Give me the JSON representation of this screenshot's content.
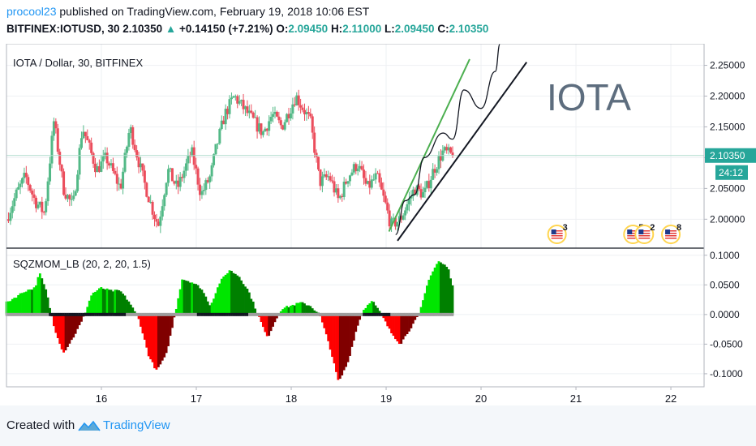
{
  "header": {
    "user": "procool23",
    "published_text": "published on TradingView.com, February 19, 2018 10:06 EST",
    "symbol": "BITFINEX:IOTUSD, 30",
    "last": "2.10350",
    "change_arrow": "▲",
    "change": "+0.14150 (+7.21%)",
    "o_label": "O:",
    "o_value": "2.09450",
    "h_label": "H:",
    "h_value": "2.11000",
    "l_label": "L:",
    "l_value": "2.09450",
    "c_label": "C:",
    "c_value": "2.10350"
  },
  "footer": {
    "created": "Created with",
    "brand": "TradingView"
  },
  "colors": {
    "up_candle": "#53b987",
    "down_candle": "#eb4d5c",
    "hist_green": "#00e600",
    "hist_green_dark": "#008000",
    "hist_red": "#ff0000",
    "hist_red_dark": "#800000",
    "price_line": "#b0dccd",
    "price_label_bg": "#26a69a",
    "annotation_green": "#4caf50",
    "annotation_black": "#131722",
    "iota_text": "#5d6d7e",
    "flag_ring": "#ffd54f"
  },
  "chart_data": [
    {
      "type": "candlestick",
      "title": "IOTA / Dollar, 30, BITFINEX",
      "x_tick_labels": [
        "16",
        "17",
        "18",
        "19",
        "20",
        "21",
        "22"
      ],
      "x_ticks": [
        16,
        17,
        18,
        19,
        20,
        21,
        22
      ],
      "xlim": [
        15.0,
        22.35
      ],
      "ylim": [
        1.953,
        2.285
      ],
      "y_ticks": [
        2.0,
        2.05,
        2.1,
        2.15,
        2.2,
        2.25
      ],
      "y_tick_labels": [
        "2.00000",
        "2.05000",
        "2.10000",
        "2.15000",
        "2.20000",
        "2.25000"
      ],
      "last_price": "2.10350",
      "last_price_value": 2.1035,
      "countdown": "24:12",
      "grid": true,
      "closes_anchor": [
        [
          15.0,
          2.0
        ],
        [
          15.1,
          2.04
        ],
        [
          15.2,
          2.07
        ],
        [
          15.3,
          2.03
        ],
        [
          15.4,
          2.01
        ],
        [
          15.5,
          2.16
        ],
        [
          15.6,
          2.05
        ],
        [
          15.7,
          2.02
        ],
        [
          15.8,
          2.15
        ],
        [
          15.95,
          2.08
        ],
        [
          16.05,
          2.1
        ],
        [
          16.2,
          2.05
        ],
        [
          16.3,
          2.15
        ],
        [
          16.45,
          2.06
        ],
        [
          16.55,
          2.01
        ],
        [
          16.6,
          1.99
        ],
        [
          16.7,
          2.08
        ],
        [
          16.8,
          2.05
        ],
        [
          16.95,
          2.11
        ],
        [
          17.05,
          2.04
        ],
        [
          17.15,
          2.07
        ],
        [
          17.2,
          2.11
        ],
        [
          17.3,
          2.17
        ],
        [
          17.4,
          2.2
        ],
        [
          17.55,
          2.17
        ],
        [
          17.7,
          2.14
        ],
        [
          17.8,
          2.17
        ],
        [
          17.9,
          2.15
        ],
        [
          18.05,
          2.2
        ],
        [
          18.2,
          2.16
        ],
        [
          18.3,
          2.06
        ],
        [
          18.4,
          2.07
        ],
        [
          18.5,
          2.03
        ],
        [
          18.6,
          2.07
        ],
        [
          18.7,
          2.09
        ],
        [
          18.8,
          2.05
        ],
        [
          18.9,
          2.07
        ],
        [
          19.0,
          2.02
        ],
        [
          19.05,
          1.99
        ],
        [
          19.15,
          2.0
        ],
        [
          19.3,
          2.05
        ],
        [
          19.4,
          2.04
        ],
        [
          19.5,
          2.08
        ],
        [
          19.6,
          2.11
        ],
        [
          19.7,
          2.1035
        ]
      ],
      "annotations": [
        {
          "type": "text",
          "text": "IOTA"
        },
        {
          "type": "trendline",
          "color": "green",
          "from": [
            19.03,
            1.98
          ],
          "to": [
            19.88,
            2.26
          ]
        },
        {
          "type": "trendline",
          "color": "black",
          "from": [
            19.12,
            1.965
          ],
          "to": [
            20.48,
            2.255
          ]
        },
        {
          "type": "path",
          "color": "black",
          "points": [
            [
              19.1,
              1.975
            ],
            [
              19.2,
              2.03
            ],
            [
              19.3,
              2.04
            ],
            [
              19.4,
              2.1
            ],
            [
              19.6,
              2.14
            ],
            [
              19.7,
              2.13
            ],
            [
              19.82,
              2.21
            ],
            [
              20.0,
              2.18
            ],
            [
              20.15,
              2.24
            ],
            [
              20.2,
              2.3
            ]
          ]
        }
      ],
      "event_flags": [
        {
          "x": 20.8,
          "label": "3"
        },
        {
          "x": 21.6,
          "label": "5"
        },
        {
          "x": 21.72,
          "label": "2"
        },
        {
          "x": 22.0,
          "label": "8"
        }
      ]
    },
    {
      "type": "bar",
      "title": "SQZMOM_LB (20, 2, 20, 1.5)",
      "xlim": [
        15.0,
        22.35
      ],
      "ylim": [
        -0.122,
        0.112
      ],
      "y_ticks": [
        -0.1,
        -0.05,
        0.0,
        0.05,
        0.1
      ],
      "y_tick_labels": [
        "-0.1000",
        "-0.0500",
        "0.0000",
        "0.0500",
        "0.1000"
      ],
      "grid": true,
      "momentum_anchor": [
        [
          15.0,
          0.02
        ],
        [
          15.2,
          0.04
        ],
        [
          15.3,
          0.045
        ],
        [
          15.35,
          0.07
        ],
        [
          15.42,
          0.04
        ],
        [
          15.5,
          -0.02
        ],
        [
          15.6,
          -0.065
        ],
        [
          15.7,
          -0.04
        ],
        [
          15.8,
          -0.01
        ],
        [
          15.9,
          0.035
        ],
        [
          16.0,
          0.045
        ],
        [
          16.1,
          0.04
        ],
        [
          16.2,
          0.04
        ],
        [
          16.3,
          0.02
        ],
        [
          16.4,
          -0.01
        ],
        [
          16.5,
          -0.07
        ],
        [
          16.58,
          -0.095
        ],
        [
          16.68,
          -0.07
        ],
        [
          16.75,
          -0.02
        ],
        [
          16.85,
          0.06
        ],
        [
          16.95,
          0.055
        ],
        [
          17.05,
          0.045
        ],
        [
          17.15,
          0.015
        ],
        [
          17.25,
          0.055
        ],
        [
          17.35,
          0.075
        ],
        [
          17.45,
          0.065
        ],
        [
          17.55,
          0.04
        ],
        [
          17.65,
          0.0
        ],
        [
          17.75,
          -0.04
        ],
        [
          17.82,
          -0.015
        ],
        [
          17.9,
          0.01
        ],
        [
          18.0,
          0.015
        ],
        [
          18.1,
          0.02
        ],
        [
          18.2,
          0.015
        ],
        [
          18.3,
          0.0
        ],
        [
          18.4,
          -0.05
        ],
        [
          18.5,
          -0.115
        ],
        [
          18.6,
          -0.08
        ],
        [
          18.68,
          -0.03
        ],
        [
          18.75,
          0.005
        ],
        [
          18.85,
          0.025
        ],
        [
          18.95,
          0.0
        ],
        [
          19.05,
          -0.03
        ],
        [
          19.15,
          -0.05
        ],
        [
          19.25,
          -0.025
        ],
        [
          19.35,
          0.0
        ],
        [
          19.45,
          0.06
        ],
        [
          19.55,
          0.09
        ],
        [
          19.65,
          0.08
        ],
        [
          19.72,
          0.04
        ]
      ]
    }
  ]
}
